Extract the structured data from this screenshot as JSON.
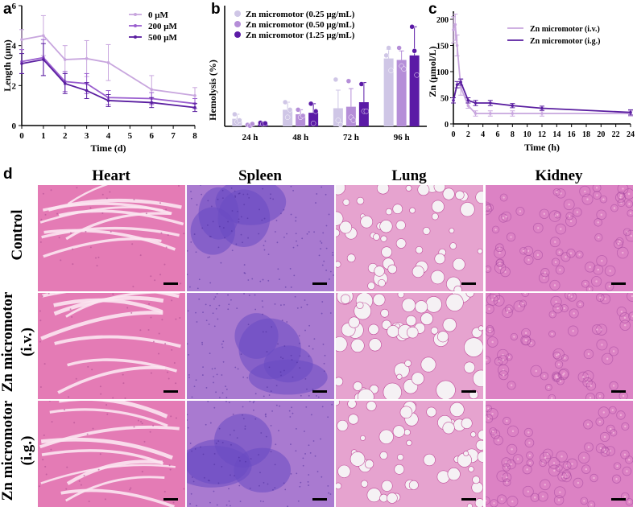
{
  "panels": {
    "a": {
      "label": "a"
    },
    "b": {
      "label": "b"
    },
    "c": {
      "label": "c"
    },
    "d": {
      "label": "d",
      "columns": [
        "Heart",
        "Spleen",
        "Lung",
        "Kidney"
      ],
      "rows": [
        {
          "lines": [
            "Control"
          ]
        },
        {
          "lines": [
            "Zn micromotor",
            "(i.v.)"
          ]
        },
        {
          "lines": [
            "Zn micromotor",
            "(i.g.)"
          ]
        }
      ]
    }
  },
  "colors": {
    "light": "#c8a6de",
    "mid": "#9a5ecf",
    "dark": "#5a1ea0",
    "bar1": "#cfc6e6",
    "bar2": "#b58ed8",
    "bar3": "#5b1aa6",
    "heart": "#e47bb5",
    "spleen": "#a97ad0",
    "lung": "#e6a3cf",
    "kidney": "#dc82c4"
  },
  "chart_data": [
    {
      "type": "line",
      "xlabel": "Time (d)",
      "ylabel": "Length (μm)",
      "xlim": [
        0,
        8
      ],
      "ylim": [
        0,
        6
      ],
      "xticks": [
        "0",
        "1",
        "2",
        "3",
        "4",
        "5",
        "6",
        "7",
        "8"
      ],
      "yticks": [
        "0",
        "2",
        "4",
        "6"
      ],
      "x": [
        0,
        1,
        2,
        3,
        4,
        6,
        8
      ],
      "series": [
        {
          "name": "0 μM",
          "values": [
            4.3,
            4.5,
            3.3,
            3.35,
            3.15,
            1.8,
            1.5
          ],
          "err": [
            0.5,
            1.0,
            0.7,
            0.9,
            0.9,
            0.7,
            0.4
          ]
        },
        {
          "name": "200 μM",
          "values": [
            3.2,
            3.4,
            2.2,
            2.1,
            1.4,
            1.35,
            1.1
          ],
          "err": [
            0.6,
            0.9,
            0.5,
            0.5,
            0.35,
            0.3,
            0.25
          ]
        },
        {
          "name": "500 μM",
          "values": [
            3.1,
            3.3,
            2.1,
            1.75,
            1.25,
            1.15,
            0.9
          ],
          "err": [
            0.5,
            0.8,
            0.5,
            0.4,
            0.3,
            0.25,
            0.2
          ]
        }
      ]
    },
    {
      "type": "bar",
      "ylabel": "Hemolysis (%)",
      "ylim": [
        0,
        4
      ],
      "categories": [
        "24 h",
        "48 h",
        "72 h",
        "96 h"
      ],
      "series": [
        {
          "name": "Zn micromotor (0.25 μg/mL)",
          "values": [
            0.25,
            0.55,
            0.6,
            2.25
          ],
          "err": [
            0.15,
            0.25,
            0.6,
            0.3
          ]
        },
        {
          "name": "Zn micromotor (0.50 μg/mL)",
          "values": [
            0.05,
            0.4,
            0.65,
            2.2
          ],
          "err": [
            0.05,
            0.15,
            0.6,
            0.3
          ]
        },
        {
          "name": "Zn micromotor (1.25 μg/mL)",
          "values": [
            0.1,
            0.45,
            0.8,
            2.35
          ],
          "err": [
            0.05,
            0.3,
            0.65,
            0.95
          ]
        }
      ],
      "points": [
        [
          [
            0.4,
            0.15,
            0.2
          ],
          [
            0.8,
            0.3,
            0.55
          ],
          [
            1.55,
            0.2,
            0.05
          ],
          [
            2.35,
            2.6,
            1.85
          ]
        ],
        [
          [
            0.05,
            0.02,
            0.08
          ],
          [
            0.55,
            0.3,
            0.35
          ],
          [
            1.5,
            0.3,
            0.2
          ],
          [
            2.6,
            2.0,
            1.9
          ]
        ],
        [
          [
            0.12,
            0.08,
            0.1
          ],
          [
            0.75,
            0.1,
            0.5
          ],
          [
            1.4,
            0.5,
            0.5
          ],
          [
            3.3,
            2.5,
            1.7
          ]
        ]
      ]
    },
    {
      "type": "line",
      "xlabel": "Time (h)",
      "ylabel": "Zn (μmol/L)",
      "xlim": [
        0,
        24
      ],
      "ylim": [
        0,
        200
      ],
      "xticks": [
        "0",
        "2",
        "4",
        "6",
        "8",
        "10",
        "12",
        "14",
        "16",
        "18",
        "20",
        "22",
        "24"
      ],
      "yticks": [
        "0",
        "50",
        "100",
        "150",
        "200"
      ],
      "series": [
        {
          "name": "Zn micromotor (i.v.)",
          "x": [
            0,
            0.25,
            0.5,
            1,
            2,
            3,
            5,
            8,
            12,
            24
          ],
          "values": [
            180,
            190,
            150,
            70,
            35,
            20,
            20,
            20,
            20,
            20
          ],
          "err": [
            25,
            30,
            20,
            15,
            5,
            5,
            5,
            5,
            5,
            5
          ]
        },
        {
          "name": "Zn micromotor (i.g.)",
          "x": [
            0,
            0.5,
            1,
            2,
            3,
            5,
            8,
            12,
            24
          ],
          "values": [
            45,
            75,
            80,
            45,
            40,
            40,
            35,
            30,
            22
          ],
          "err": [
            5,
            6,
            6,
            5,
            5,
            5,
            4,
            4,
            5
          ]
        }
      ]
    }
  ]
}
